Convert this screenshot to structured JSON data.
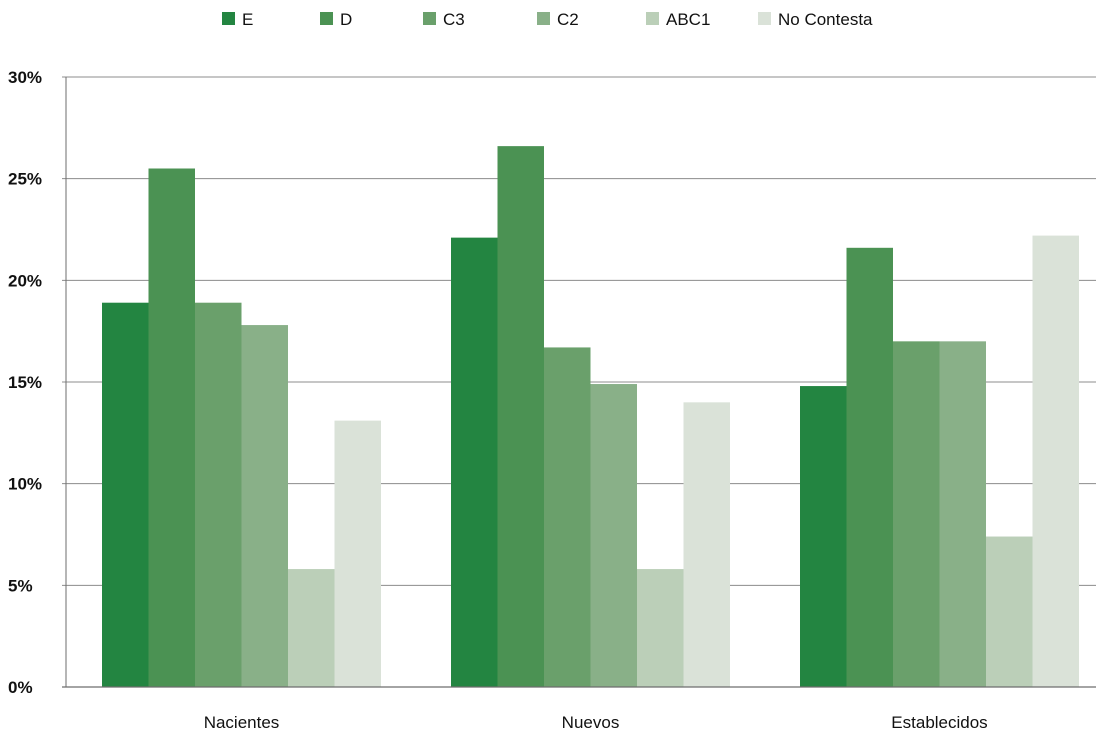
{
  "chart_data": {
    "type": "bar",
    "categories": [
      "Nacientes",
      "Nuevos",
      "Establecidos"
    ],
    "series": [
      {
        "name": "E",
        "values": [
          18.9,
          22.1,
          14.8
        ],
        "color": "#238541"
      },
      {
        "name": "D",
        "values": [
          25.5,
          26.6,
          21.6
        ],
        "color": "#4b9253"
      },
      {
        "name": "C3",
        "values": [
          18.9,
          16.7,
          17.0
        ],
        "color": "#6aa06b"
      },
      {
        "name": "C2",
        "values": [
          17.8,
          14.9,
          17.0
        ],
        "color": "#89b088"
      },
      {
        "name": "ABC1",
        "values": [
          5.8,
          5.8,
          7.4
        ],
        "color": "#bbcfb8"
      },
      {
        "name": "No Contesta",
        "values": [
          13.1,
          14.0,
          22.2
        ],
        "color": "#dae2d8"
      }
    ],
    "yticks": [
      "0%",
      "5%",
      "10%",
      "15%",
      "20%",
      "25%",
      "30%"
    ],
    "ylim": [
      0,
      30
    ],
    "grid": true,
    "legend_position": "top"
  }
}
